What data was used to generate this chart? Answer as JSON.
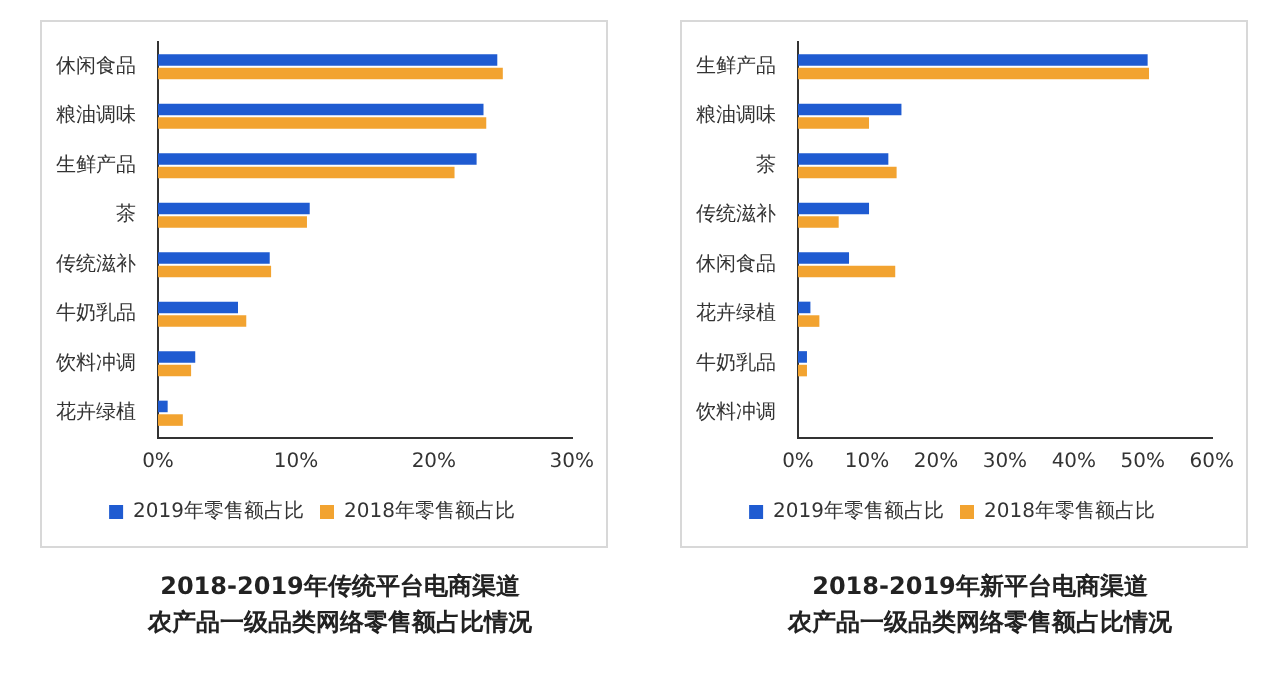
{
  "chart_data": [
    {
      "type": "bar",
      "orientation": "horizontal",
      "title": "2018-2019年传统平台电商渠道",
      "subtitle": "农产品一级品类网络零售额占比情况",
      "categories": [
        "休闲食品",
        "粮油调味",
        "生鲜产品",
        "茶",
        "传统滋补",
        "牛奶乳品",
        "饮料冲调",
        "花卉绿植"
      ],
      "series": [
        {
          "name": "2019年零售额占比",
          "color": "#1f5bd1",
          "values": [
            24.6,
            23.6,
            23.1,
            11.0,
            8.1,
            5.8,
            2.7,
            0.7
          ]
        },
        {
          "name": "2018年零售额占比",
          "color": "#f2a330",
          "values": [
            25.0,
            23.8,
            21.5,
            10.8,
            8.2,
            6.4,
            2.4,
            1.8
          ]
        }
      ],
      "xlim": [
        0,
        30
      ],
      "xticks": [
        {
          "value": 0,
          "label": "0%"
        },
        {
          "value": 10,
          "label": "10%"
        },
        {
          "value": 20,
          "label": "20%"
        },
        {
          "value": 30,
          "label": "30%"
        }
      ],
      "grid": false,
      "legend": "bottom"
    },
    {
      "type": "bar",
      "orientation": "horizontal",
      "title": "2018-2019年新平台电商渠道",
      "subtitle": "农产品一级品类网络零售额占比情况",
      "categories": [
        "生鲜产品",
        "粮油调味",
        "茶",
        "传统滋补",
        "休闲食品",
        "花卉绿植",
        "牛奶乳品",
        "饮料冲调"
      ],
      "series": [
        {
          "name": "2019年零售额占比",
          "color": "#1f5bd1",
          "values": [
            50.7,
            15.0,
            13.1,
            10.3,
            7.4,
            1.8,
            1.3,
            0
          ]
        },
        {
          "name": "2018年零售额占比",
          "color": "#f2a330",
          "values": [
            50.9,
            10.3,
            14.3,
            5.9,
            14.1,
            3.1,
            1.3,
            0
          ]
        }
      ],
      "xlim": [
        0,
        60
      ],
      "xticks": [
        {
          "value": 0,
          "label": "0%"
        },
        {
          "value": 10,
          "label": "10%"
        },
        {
          "value": 20,
          "label": "20%"
        },
        {
          "value": 30,
          "label": "30%"
        },
        {
          "value": 40,
          "label": "40%"
        },
        {
          "value": 50,
          "label": "50%"
        },
        {
          "value": 60,
          "label": "60%"
        }
      ],
      "grid": false,
      "legend": "bottom"
    }
  ]
}
